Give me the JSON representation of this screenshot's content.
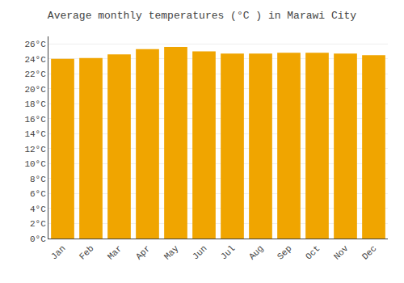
{
  "chart_data": {
    "type": "bar",
    "title": "Average monthly temperatures (°C ) in Marawi City",
    "categories": [
      "Jan",
      "Feb",
      "Mar",
      "Apr",
      "May",
      "Jun",
      "Jul",
      "Aug",
      "Sep",
      "Oct",
      "Nov",
      "Dec"
    ],
    "values": [
      24.0,
      24.1,
      24.6,
      25.3,
      25.6,
      25.0,
      24.7,
      24.7,
      24.8,
      24.8,
      24.7,
      24.5
    ],
    "color": "#F0A500",
    "ylim": [
      0,
      27
    ],
    "yticks": [
      {
        "value": 0,
        "label": "0°C"
      },
      {
        "value": 2,
        "label": "2°C"
      },
      {
        "value": 4,
        "label": "4°C"
      },
      {
        "value": 6,
        "label": "6°C"
      },
      {
        "value": 8,
        "label": "8°C"
      },
      {
        "value": 10,
        "label": "10°C"
      },
      {
        "value": 12,
        "label": "12°C"
      },
      {
        "value": 14,
        "label": "14°C"
      },
      {
        "value": 16,
        "label": "16°C"
      },
      {
        "value": 18,
        "label": "18°C"
      },
      {
        "value": 20,
        "label": "20°C"
      },
      {
        "value": 22,
        "label": "22°C"
      },
      {
        "value": 24,
        "label": "24°C"
      },
      {
        "value": 26,
        "label": "26°C"
      }
    ],
    "grid": true
  }
}
